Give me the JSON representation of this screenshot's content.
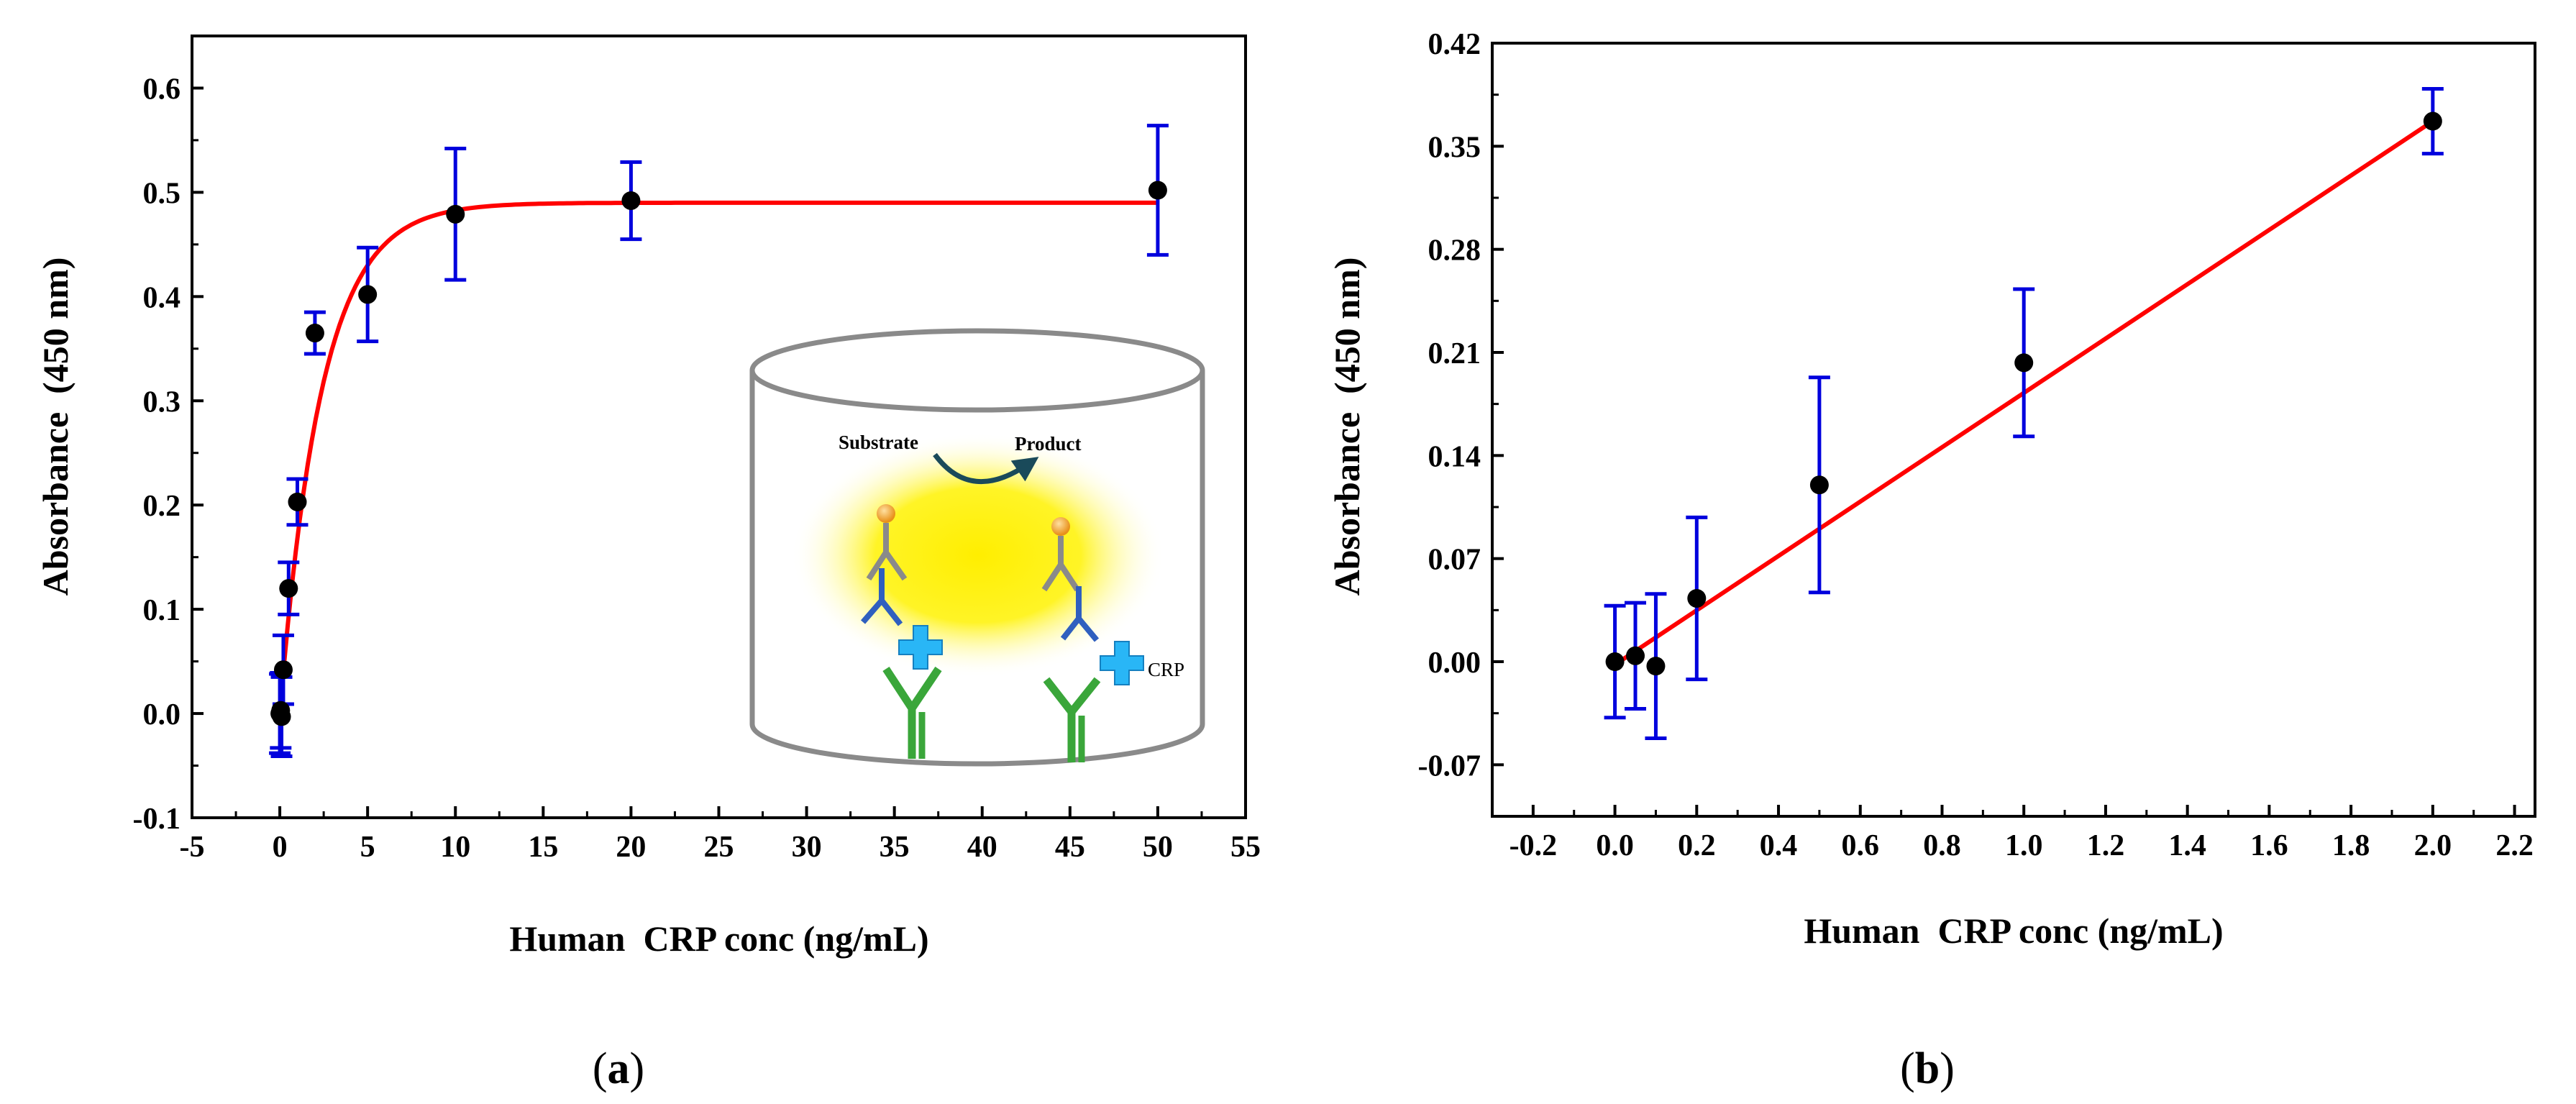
{
  "chart_data": [
    {
      "type": "scatter",
      "panel": "(a)",
      "panel_letter": "a",
      "title": "",
      "xlabel": "Human  CRP conc (ng/mL)",
      "ylabel": "Absorbance  (450 nm)",
      "xlim": [
        -5,
        55
      ],
      "ylim": [
        -0.1,
        0.65
      ],
      "xticks": [
        -5,
        0,
        5,
        10,
        15,
        20,
        25,
        30,
        35,
        40,
        45,
        50,
        55
      ],
      "xtick_labels": [
        "-5",
        "0",
        "5",
        "10",
        "15",
        "20",
        "25",
        "30",
        "35",
        "40",
        "45",
        "50",
        "55"
      ],
      "yticks": [
        -0.1,
        0.0,
        0.1,
        0.2,
        0.3,
        0.4,
        0.5,
        0.6
      ],
      "ytick_labels": [
        "-0.1",
        "0.0",
        "0.1",
        "0.2",
        "0.3",
        "0.4",
        "0.5",
        "0.6"
      ],
      "series": [
        {
          "name": "measured",
          "x": [
            0,
            0.05,
            0.1,
            0.2,
            0.5,
            1,
            2,
            5,
            10,
            20,
            50
          ],
          "y": [
            0.0,
            0.003,
            -0.003,
            0.042,
            0.12,
            0.203,
            0.365,
            0.402,
            0.479,
            0.492,
            0.502
          ],
          "err": [
            0.038,
            0.036,
            0.038,
            0.033,
            0.025,
            0.022,
            0.02,
            0.045,
            0.063,
            0.037,
            0.062
          ],
          "marker_color": "#000000",
          "errorbar_color": "#0000dd"
        },
        {
          "name": "fit",
          "kind": "saturation",
          "ymax": 0.49,
          "k": 0.42,
          "x_range": [
            0,
            50
          ],
          "line_color": "#ff0000"
        }
      ],
      "inset": {
        "substrate_label": "Substrate",
        "product_label": "Product",
        "crp_label": "CRP",
        "glow_color": "#ffee00",
        "capture_antibody_color": "#3aa63a",
        "detection_antibody_color": "#8a8a8a",
        "antigen_color": "#29b6f6",
        "bound_antibody_color": "#2f5fbf",
        "enzyme_color": "#f5a623"
      }
    },
    {
      "type": "scatter",
      "panel": "(b)",
      "panel_letter": "b",
      "title": "",
      "xlabel": "Human  CRP conc (ng/mL)",
      "ylabel": "Absorbance  (450 nm)",
      "xlim": [
        -0.3,
        2.25
      ],
      "ylim": [
        -0.105,
        0.42
      ],
      "xticks": [
        -0.2,
        0.0,
        0.2,
        0.4,
        0.6,
        0.8,
        1.0,
        1.2,
        1.4,
        1.6,
        1.8,
        2.0,
        2.2
      ],
      "xtick_labels": [
        "-0.2",
        "0.0",
        "0.2",
        "0.4",
        "0.6",
        "0.8",
        "1.0",
        "1.2",
        "1.4",
        "1.6",
        "1.8",
        "2.0",
        "2.2"
      ],
      "yticks": [
        -0.07,
        0.0,
        0.07,
        0.14,
        0.21,
        0.28,
        0.35,
        0.42
      ],
      "ytick_labels": [
        "-0.07",
        "0.00",
        "0.07",
        "0.14",
        "0.21",
        "0.28",
        "0.35",
        "0.42"
      ],
      "series": [
        {
          "name": "measured",
          "x": [
            0.0,
            0.05,
            0.1,
            0.2,
            0.5,
            1.0,
            2.0
          ],
          "y": [
            0.0,
            0.004,
            -0.003,
            0.043,
            0.12,
            0.203,
            0.367
          ],
          "err": [
            0.038,
            0.036,
            0.049,
            0.055,
            0.073,
            0.05,
            0.022
          ],
          "marker_color": "#000000",
          "errorbar_color": "#0000dd"
        },
        {
          "name": "fit",
          "kind": "linear",
          "x": [
            0.0,
            2.0
          ],
          "y": [
            -0.002,
            0.367
          ],
          "line_color": "#ff0000"
        }
      ]
    }
  ]
}
